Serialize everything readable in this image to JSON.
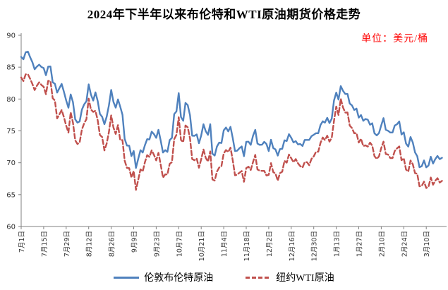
{
  "title": "2024年下半年以来布伦特和WTI原油期货价格走势",
  "unit_label": "单位：美元/桶",
  "colors": {
    "brent": "#4F81BD",
    "wti": "#C0504D",
    "axis": "#808080",
    "tick_text": "#333333",
    "unit_text": "#FF0000"
  },
  "chart_data": {
    "type": "line",
    "title": "2024年下半年以来布伦特和WTI原油期货价格走势",
    "unit": "单位：美元/桶",
    "grid": false,
    "legend_position": "bottom",
    "ylim": [
      60,
      90
    ],
    "y_ticks": [
      60,
      65,
      70,
      75,
      80,
      85,
      90
    ],
    "x_tick_interval_points": 10,
    "x_tick_labels": [
      "7月1日",
      "7月15日",
      "7月29日",
      "8月12日",
      "8月26日",
      "9月9日",
      "9月23日",
      "10月7日",
      "10月21日",
      "11月4日",
      "11月18日",
      "12月2日",
      "12月16日",
      "12月30日",
      "1月13日",
      "1月27日",
      "2月10日",
      "2月24日",
      "3月10日"
    ],
    "series": [
      {
        "name": "伦敦布伦特原油",
        "color": "#4F81BD",
        "line_style": "solid",
        "values": [
          86.6,
          86.24,
          87.34,
          87.43,
          86.54,
          85.75,
          84.66,
          85.08,
          85.4,
          85.03,
          84.85,
          83.73,
          85.08,
          85.11,
          82.63,
          82.4,
          81.01,
          81.71,
          82.37,
          81.13,
          79.78,
          78.63,
          80.72,
          79.52,
          76.81,
          76.3,
          76.48,
          78.33,
          79.16,
          79.66,
          82.3,
          80.69,
          79.76,
          81.04,
          79.68,
          77.66,
          77.2,
          76.05,
          77.22,
          79.02,
          81.43,
          79.55,
          78.65,
          79.94,
          78.8,
          77.52,
          73.75,
          72.7,
          72.69,
          71.06,
          71.84,
          69.19,
          70.61,
          71.97,
          71.61,
          72.75,
          73.7,
          73.65,
          74.88,
          74.49,
          73.9,
          75.17,
          73.46,
          71.6,
          71.98,
          71.7,
          73.56,
          73.9,
          77.62,
          78.05,
          80.93,
          77.18,
          76.58,
          79.4,
          79.04,
          77.46,
          74.25,
          74.22,
          74.45,
          73.06,
          74.29,
          76.04,
          74.96,
          74.38,
          76.05,
          71.42,
          71.12,
          72.55,
          73.16,
          73.1,
          75.08,
          75.53,
          74.92,
          75.63,
          73.87,
          71.83,
          71.89,
          72.28,
          72.56,
          71.04,
          73.3,
          73.31,
          72.81,
          74.23,
          75.17,
          73.01,
          72.81,
          72.83,
          73.28,
          72.94,
          71.83,
          73.62,
          72.31,
          72.09,
          71.12,
          72.14,
          72.19,
          73.52,
          73.41,
          74.49,
          73.91,
          73.19,
          73.39,
          72.88,
          72.94,
          72.63,
          73.58,
          73.58,
          73.58,
          74.17,
          74.39,
          74.64,
          74.64,
          75.93,
          76.51,
          76.3,
          77.05,
          76.23,
          76.92,
          79.76,
          81.01,
          79.92,
          82.03,
          81.29,
          80.79,
          80.79,
          79.29,
          79.0,
          78.29,
          78.5,
          77.08,
          77.49,
          76.58,
          76.87,
          76.76,
          75.96,
          76.2,
          74.61,
          74.29,
          74.66,
          75.87,
          77.0,
          75.18,
          75.02,
          74.74,
          74.74,
          75.84,
          76.04,
          76.48,
          74.43,
          74.78,
          73.02,
          72.53,
          74.04,
          73.18,
          71.62,
          71.04,
          69.3,
          69.46,
          70.36,
          69.28,
          69.56,
          70.95,
          69.88,
          70.58,
          71.07,
          70.56,
          70.78
        ]
      },
      {
        "name": "纽约WTI原油",
        "color": "#C0504D",
        "line_style": "dashed",
        "values": [
          83.38,
          82.81,
          83.88,
          83.88,
          83.16,
          82.33,
          81.41,
          82.1,
          82.62,
          82.21,
          81.91,
          80.76,
          82.85,
          82.82,
          80.13,
          79.78,
          76.96,
          77.59,
          78.28,
          77.16,
          75.81,
          74.73,
          77.91,
          76.31,
          73.52,
          72.94,
          73.2,
          75.23,
          76.19,
          76.84,
          80.06,
          78.35,
          77.98,
          78.16,
          76.65,
          74.37,
          74.04,
          71.93,
          73.01,
          74.83,
          77.42,
          75.53,
          74.52,
          75.91,
          73.55,
          73.55,
          70.34,
          69.2,
          69.15,
          67.67,
          68.71,
          65.75,
          67.31,
          68.97,
          68.65,
          70.09,
          71.19,
          70.91,
          71.95,
          71.25,
          70.37,
          71.56,
          69.69,
          67.67,
          68.18,
          68.17,
          69.83,
          70.1,
          73.71,
          74.38,
          77.14,
          73.57,
          73.24,
          75.85,
          75.56,
          73.83,
          70.58,
          70.39,
          70.67,
          69.22,
          70.56,
          72.09,
          70.77,
          70.19,
          71.78,
          67.38,
          67.21,
          68.61,
          69.26,
          69.49,
          71.47,
          71.99,
          71.69,
          72.36,
          70.38,
          68.04,
          68.12,
          68.43,
          68.7,
          67.02,
          69.16,
          69.39,
          68.87,
          70.1,
          71.24,
          68.94,
          68.77,
          68.72,
          68.72,
          68.0,
          68.1,
          69.94,
          68.54,
          68.3,
          67.2,
          68.37,
          68.59,
          70.29,
          70.02,
          71.29,
          70.71,
          70.08,
          70.58,
          69.91,
          69.46,
          69.24,
          70.1,
          70.1,
          69.62,
          70.6,
          70.99,
          71.72,
          71.72,
          73.13,
          73.96,
          73.56,
          74.25,
          73.32,
          73.92,
          76.57,
          78.82,
          77.5,
          80.04,
          78.68,
          77.88,
          77.88,
          75.83,
          75.44,
          74.62,
          74.66,
          73.17,
          73.77,
          72.62,
          72.73,
          72.53,
          73.16,
          72.7,
          71.03,
          70.61,
          71.0,
          72.32,
          73.32,
          71.37,
          71.29,
          70.74,
          70.74,
          71.85,
          72.25,
          72.57,
          70.4,
          70.7,
          68.93,
          68.62,
          70.35,
          69.76,
          68.37,
          68.26,
          66.31,
          66.36,
          67.04,
          66.03,
          66.25,
          67.68,
          66.55,
          67.18,
          67.58,
          66.9,
          67.16
        ]
      }
    ]
  }
}
